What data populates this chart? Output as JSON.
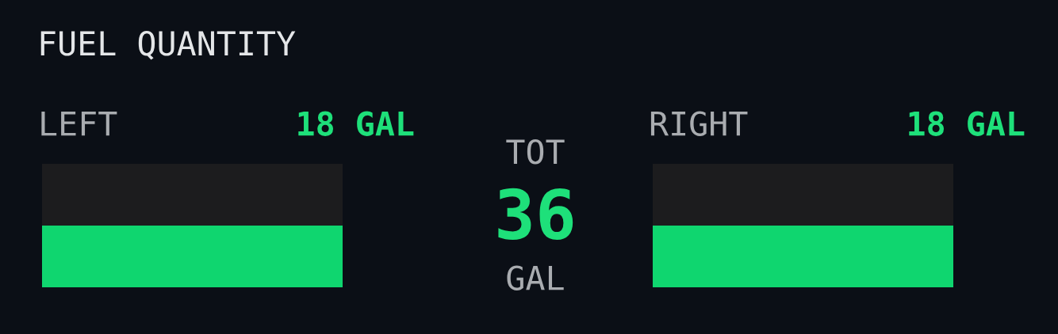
{
  "chart_data": {
    "type": "other",
    "title": "FUEL QUANTITY",
    "categories": [
      "LEFT",
      "RIGHT"
    ],
    "values": [
      18,
      18
    ],
    "value_labels": [
      "18 GAL",
      "18 GAL"
    ],
    "color": "#0fd66f",
    "totals": [
      "36"
    ],
    "annotations": [
      "TOT",
      "GAL"
    ]
  }
}
